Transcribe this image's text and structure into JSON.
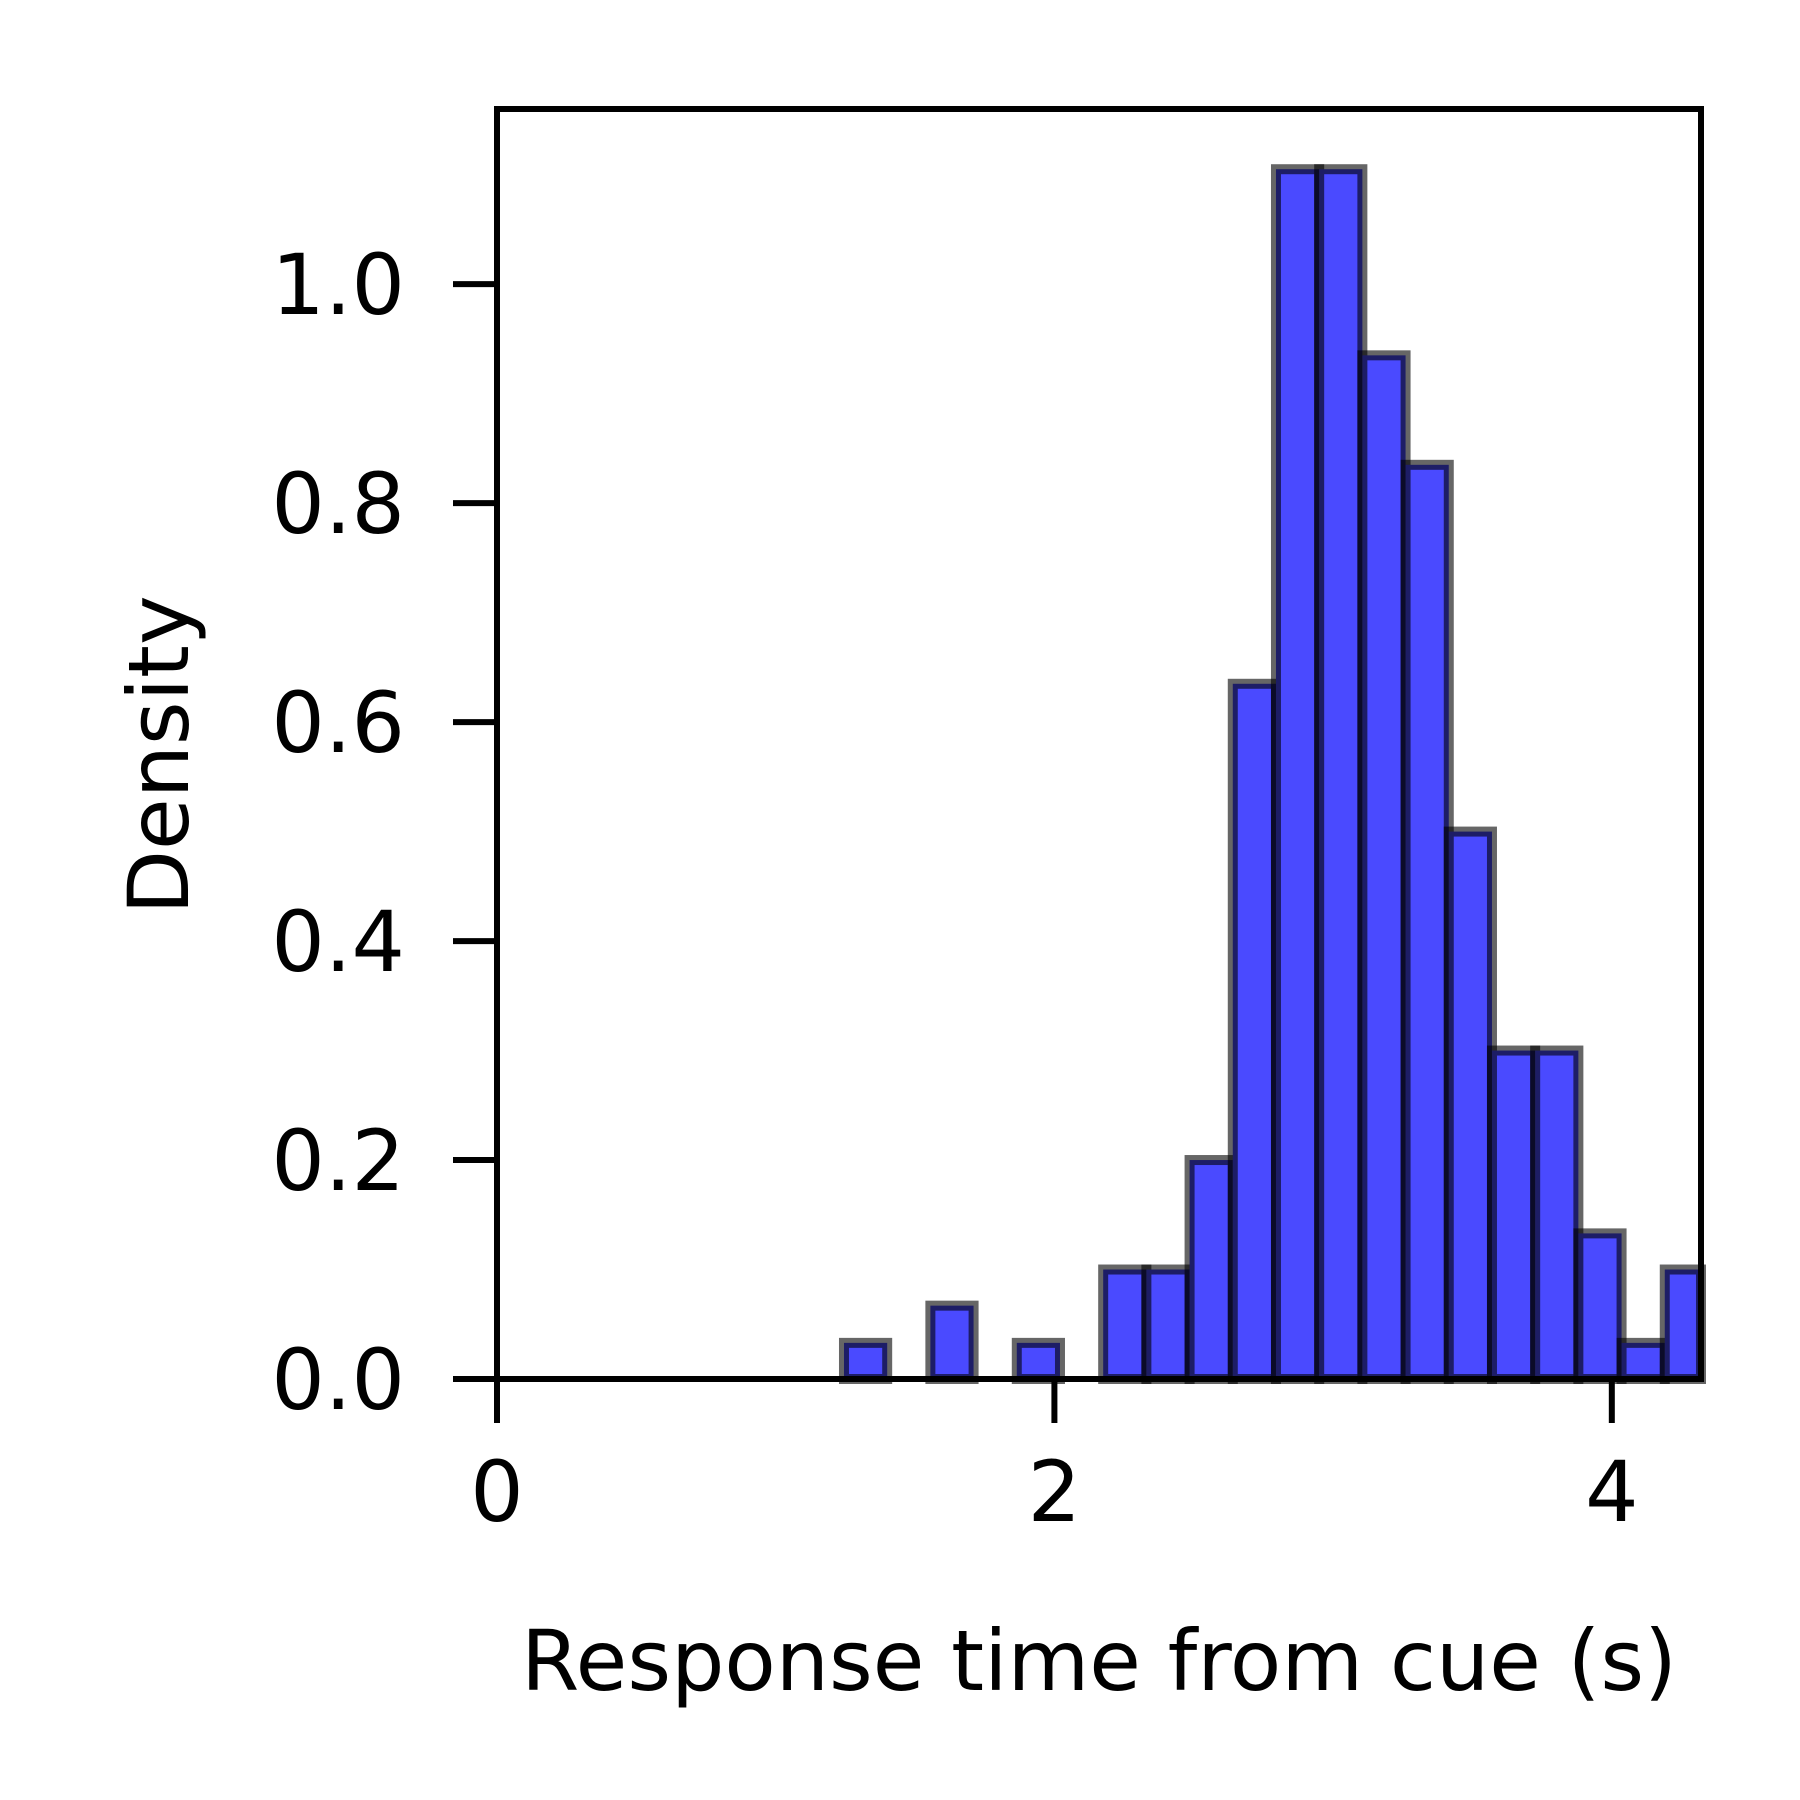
{
  "chart_data": {
    "type": "bar",
    "title": "",
    "xlabel": "Response time from cue (s)",
    "ylabel": "Density",
    "xlim": [
      0,
      4.32
    ],
    "ylim": [
      0,
      1.16
    ],
    "xticks": [
      0,
      2,
      4
    ],
    "xtick_labels": [
      "0",
      "2",
      "4"
    ],
    "yticks": [
      0.0,
      0.2,
      0.4,
      0.6,
      0.8,
      1.0
    ],
    "ytick_labels": [
      "0.0",
      "0.2",
      "0.4",
      "0.6",
      "0.8",
      "1.0"
    ],
    "grid": false,
    "bar_color": "#4a4aff",
    "bins": [
      {
        "x0": 1.245,
        "x1": 1.4,
        "value": 0.033
      },
      {
        "x0": 1.555,
        "x1": 1.71,
        "value": 0.067
      },
      {
        "x0": 1.865,
        "x1": 2.02,
        "value": 0.033
      },
      {
        "x0": 2.175,
        "x1": 2.33,
        "value": 0.1
      },
      {
        "x0": 2.33,
        "x1": 2.485,
        "value": 0.1
      },
      {
        "x0": 2.485,
        "x1": 2.64,
        "value": 0.2
      },
      {
        "x0": 2.64,
        "x1": 2.795,
        "value": 0.635
      },
      {
        "x0": 2.795,
        "x1": 2.95,
        "value": 1.105
      },
      {
        "x0": 2.95,
        "x1": 3.105,
        "value": 1.105
      },
      {
        "x0": 3.105,
        "x1": 3.26,
        "value": 0.935
      },
      {
        "x0": 3.26,
        "x1": 3.415,
        "value": 0.835
      },
      {
        "x0": 3.415,
        "x1": 3.57,
        "value": 0.5
      },
      {
        "x0": 3.57,
        "x1": 3.725,
        "value": 0.3
      },
      {
        "x0": 3.725,
        "x1": 3.88,
        "value": 0.3
      },
      {
        "x0": 3.88,
        "x1": 4.035,
        "value": 0.133
      },
      {
        "x0": 4.035,
        "x1": 4.19,
        "value": 0.033
      },
      {
        "x0": 4.19,
        "x1": 4.32,
        "value": 0.1
      }
    ]
  }
}
